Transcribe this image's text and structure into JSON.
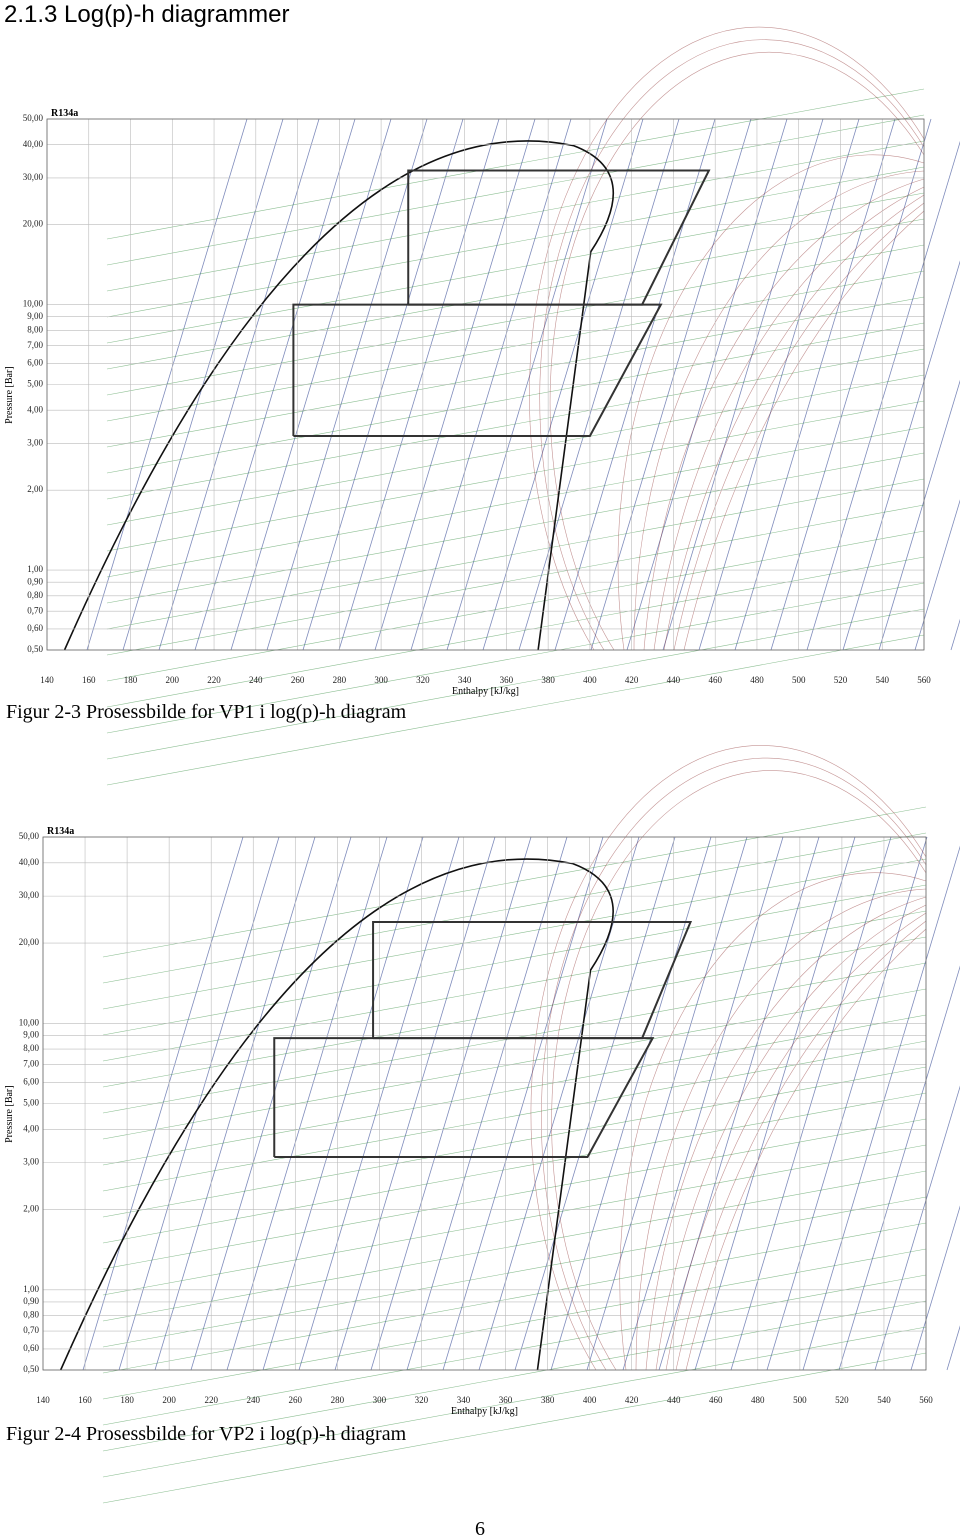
{
  "header": {
    "title": "2.1.3 Log(p)-h diagrammer"
  },
  "chart_data": [
    {
      "type": "line",
      "title": "R134a",
      "xlabel": "Enthalpy [kJ/kg]",
      "ylabel": "Pressure [Bar]",
      "caption": "Figur 2-3 Prosessbilde for VP1 i log(p)-h diagram",
      "log_y": true,
      "grid": true,
      "xlim": [
        140,
        560
      ],
      "ylim": [
        0.5,
        50
      ],
      "xticks": [
        140,
        160,
        180,
        200,
        220,
        240,
        260,
        280,
        300,
        320,
        340,
        360,
        380,
        400,
        420,
        440,
        460,
        480,
        500,
        520,
        540,
        560
      ],
      "yticks": [
        {
          "value": 0.5,
          "label": "0,50"
        },
        {
          "value": 0.6,
          "label": "0,60"
        },
        {
          "value": 0.7,
          "label": "0,70"
        },
        {
          "value": 0.8,
          "label": "0,80"
        },
        {
          "value": 0.9,
          "label": "0,90"
        },
        {
          "value": 1,
          "label": "1,00"
        },
        {
          "value": 2,
          "label": "2,00"
        },
        {
          "value": 3,
          "label": "3,00"
        },
        {
          "value": 4,
          "label": "4,00"
        },
        {
          "value": 5,
          "label": "5,00"
        },
        {
          "value": 6,
          "label": "6,00"
        },
        {
          "value": 7,
          "label": "7,00"
        },
        {
          "value": 8,
          "label": "8,00"
        },
        {
          "value": 9,
          "label": "9,00"
        },
        {
          "value": 10,
          "label": "10,00"
        },
        {
          "value": 20,
          "label": "20,00"
        },
        {
          "value": 30,
          "label": "30,00"
        },
        {
          "value": 40,
          "label": "40,00"
        },
        {
          "value": 50,
          "label": "50,00"
        }
      ],
      "series": [
        {
          "color": "#333333",
          "x": [
            258,
            400,
            434,
            258,
            258
          ],
          "values": [
            3.2,
            3.2,
            10,
            10,
            3.2
          ]
        },
        {
          "color": "#333333",
          "x": [
            313,
            425,
            457,
            313,
            313
          ],
          "values": [
            10,
            10,
            32,
            32,
            10
          ]
        }
      ]
    },
    {
      "type": "line",
      "title": "R134a",
      "xlabel": "Enthalpy [kJ/kg]",
      "ylabel": "Pressure [Bar]",
      "caption": "Figur 2-4 Prosessbilde for VP2 i log(p)-h diagram",
      "log_y": true,
      "grid": true,
      "xlim": [
        140,
        560
      ],
      "ylim": [
        0.5,
        50
      ],
      "xticks": [
        140,
        160,
        180,
        200,
        220,
        240,
        260,
        280,
        300,
        320,
        340,
        360,
        380,
        400,
        420,
        440,
        460,
        480,
        500,
        520,
        540,
        560
      ],
      "yticks": [
        {
          "value": 0.5,
          "label": "0,50"
        },
        {
          "value": 0.6,
          "label": "0,60"
        },
        {
          "value": 0.7,
          "label": "0,70"
        },
        {
          "value": 0.8,
          "label": "0,80"
        },
        {
          "value": 0.9,
          "label": "0,90"
        },
        {
          "value": 1,
          "label": "1,00"
        },
        {
          "value": 2,
          "label": "2,00"
        },
        {
          "value": 3,
          "label": "3,00"
        },
        {
          "value": 4,
          "label": "4,00"
        },
        {
          "value": 5,
          "label": "5,00"
        },
        {
          "value": 6,
          "label": "6,00"
        },
        {
          "value": 7,
          "label": "7,00"
        },
        {
          "value": 8,
          "label": "8,00"
        },
        {
          "value": 9,
          "label": "9,00"
        },
        {
          "value": 10,
          "label": "10,00"
        },
        {
          "value": 20,
          "label": "20,00"
        },
        {
          "value": 30,
          "label": "30,00"
        },
        {
          "value": 40,
          "label": "40,00"
        },
        {
          "value": 50,
          "label": "50,00"
        }
      ],
      "series": [
        {
          "color": "#333333",
          "x": [
            250,
            399,
            430,
            250,
            250
          ],
          "values": [
            3.15,
            3.15,
            8.8,
            8.8,
            3.15
          ]
        },
        {
          "color": "#333333",
          "x": [
            297,
            425,
            448,
            297,
            297
          ],
          "values": [
            8.8,
            8.8,
            24,
            24,
            8.8
          ]
        }
      ]
    }
  ],
  "page_number": "6"
}
